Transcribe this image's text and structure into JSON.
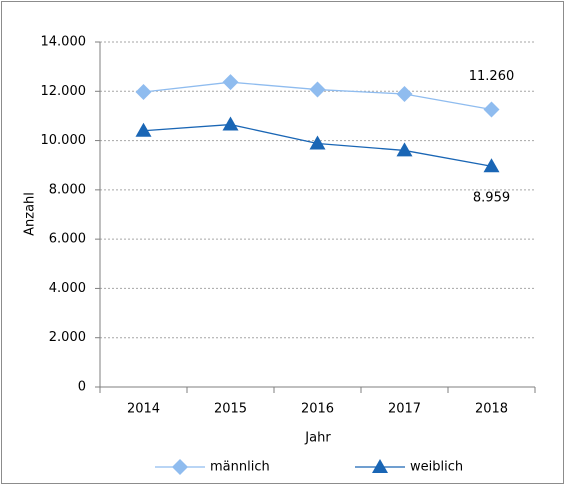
{
  "chart_data": {
    "type": "line",
    "categories": [
      "2014",
      "2015",
      "2016",
      "2017",
      "2018"
    ],
    "series": [
      {
        "name": "männlich",
        "color": "#8fbcef",
        "marker": "diamond",
        "values": [
          11970,
          12370,
          12070,
          11890,
          11260
        ],
        "value_labels": [
          null,
          null,
          null,
          null,
          "11.260"
        ]
      },
      {
        "name": "weiblich",
        "color": "#1a66b5",
        "marker": "triangle",
        "values": [
          10400,
          10650,
          9880,
          9600,
          8959
        ],
        "value_labels": [
          null,
          null,
          null,
          null,
          "8.959"
        ]
      }
    ],
    "xlabel": "Jahr",
    "ylabel": "Anzahl",
    "ylim": [
      0,
      14000
    ],
    "yticks": [
      0,
      {
        "value": 2000,
        "label": "2.000"
      },
      {
        "value": 4000,
        "label": "4.000"
      },
      {
        "value": 6000,
        "label": "6.000"
      },
      {
        "value": 8000,
        "label": "8.000"
      },
      {
        "value": 10000,
        "label": "10.000"
      },
      {
        "value": 12000,
        "label": "12.000"
      },
      {
        "value": 14000,
        "label": "14.000"
      }
    ],
    "grid": true,
    "legend": "bottom"
  }
}
